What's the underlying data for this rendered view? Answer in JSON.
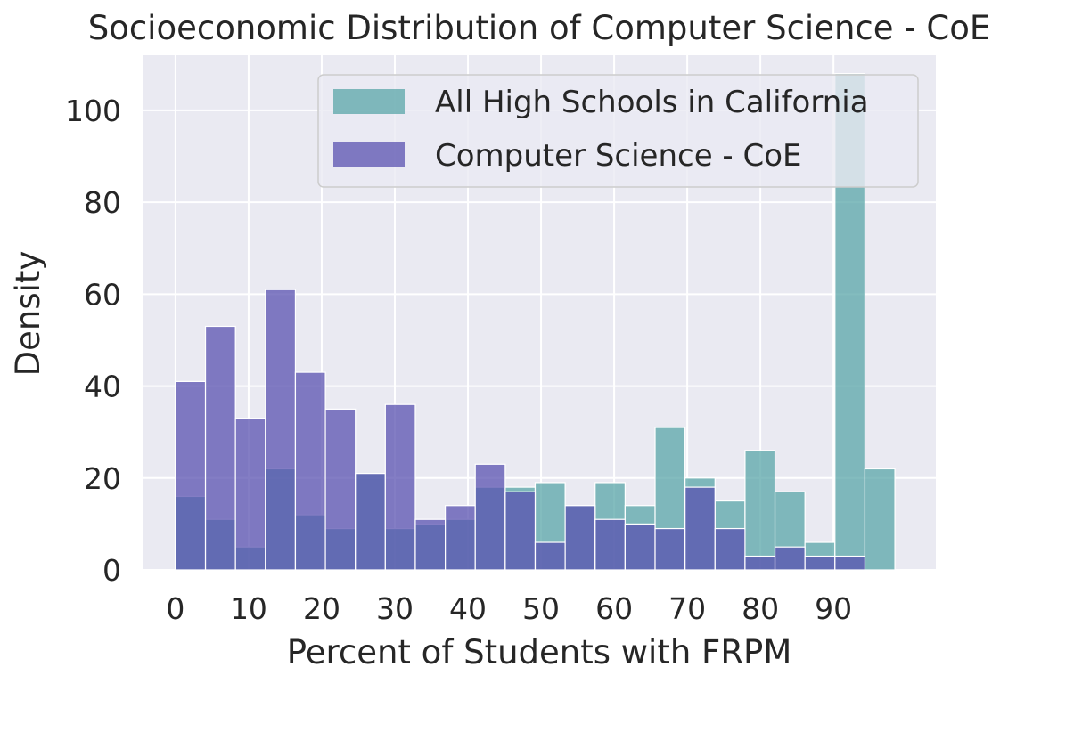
{
  "chart_data": {
    "type": "bar",
    "title": "Socioeconomic Distribution of Computer Science - CoE",
    "xlabel": "Percent of Students with FRPM",
    "ylabel": "Density",
    "xlim": [
      -4.5,
      104
    ],
    "ylim": [
      0,
      112
    ],
    "xticks": [
      0,
      10,
      20,
      30,
      40,
      50,
      60,
      70,
      80,
      90
    ],
    "yticks": [
      0,
      20,
      40,
      60,
      80,
      100
    ],
    "bin_width": 4.1,
    "bin_starts": [
      0,
      4.1,
      8.2,
      12.3,
      16.4,
      20.5,
      24.6,
      28.7,
      32.8,
      36.9,
      41.0,
      45.1,
      49.2,
      53.3,
      57.4,
      61.5,
      65.6,
      69.7,
      73.8,
      77.9,
      82.0,
      86.1,
      90.2,
      94.3,
      98.4
    ],
    "grid": true,
    "legend_position": "top-right",
    "series": [
      {
        "name": "All High Schools in California",
        "color": "#59a5a8",
        "values": [
          16,
          11,
          5,
          22,
          12,
          9,
          21,
          9,
          10,
          11,
          18,
          18,
          19,
          14,
          19,
          14,
          31,
          20,
          15,
          26,
          17,
          6,
          108,
          22,
          0
        ]
      },
      {
        "name": "Computer Science - CoE",
        "color": "#5a52b0",
        "values": [
          41,
          53,
          33,
          61,
          43,
          35,
          21,
          36,
          11,
          14,
          23,
          17,
          6,
          14,
          11,
          10,
          9,
          18,
          9,
          3,
          5,
          3,
          3,
          0,
          0
        ]
      }
    ]
  }
}
